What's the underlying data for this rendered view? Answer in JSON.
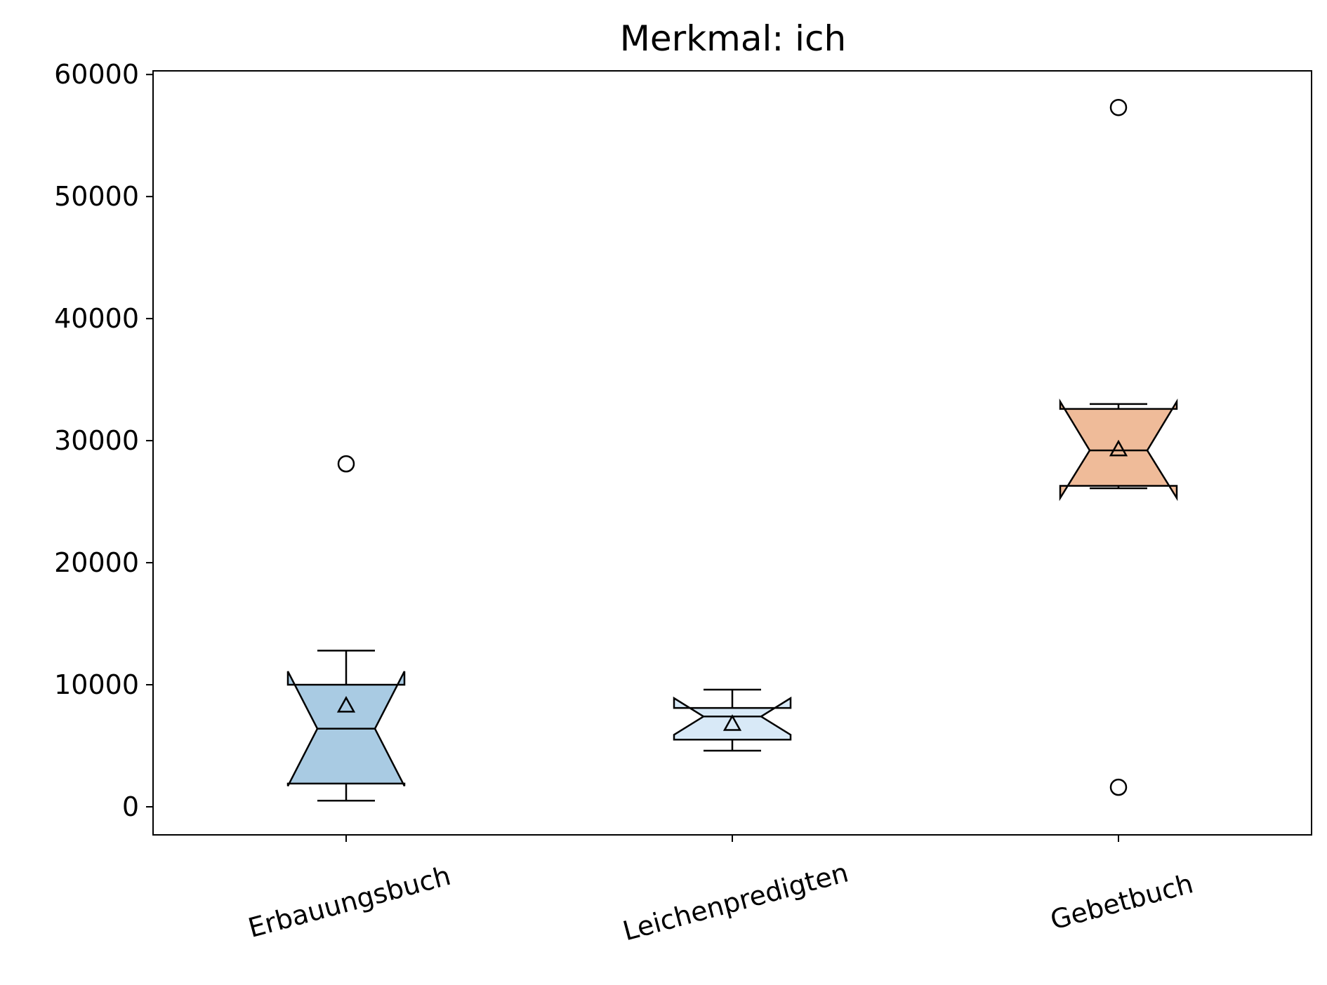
{
  "chart_data": {
    "type": "box",
    "title": "Merkmal: ich",
    "xlabel": "",
    "ylabel": "",
    "ylim": [
      -2300,
      60300
    ],
    "yticks": [
      0,
      10000,
      20000,
      30000,
      40000,
      50000,
      60000
    ],
    "ytick_labels": [
      "0",
      "10000",
      "20000",
      "30000",
      "40000",
      "50000",
      "60000"
    ],
    "grid": false,
    "notched": true,
    "show_means": true,
    "categories": [
      "Erbauungsbuch",
      "Leichenpredigten",
      "Gebetbuch"
    ],
    "boxes": [
      {
        "label": "Erbauungsbuch",
        "color": "#a9cbe3",
        "whisker_low": 500,
        "q1": 1900,
        "median": 6400,
        "q3": 10000,
        "whisker_high": 12800,
        "notch_low": 1700,
        "notch_high": 11100,
        "mean": 8300,
        "outliers": [
          28100
        ]
      },
      {
        "label": "Leichenpredigten",
        "color": "#d8e9f7",
        "whisker_low": 4600,
        "q1": 5500,
        "median": 7400,
        "q3": 8100,
        "whisker_high": 9600,
        "notch_low": 5900,
        "notch_high": 8900,
        "mean": 6800,
        "outliers": []
      },
      {
        "label": "Gebetbuch",
        "color": "#efbb99",
        "whisker_low": 26100,
        "q1": 26300,
        "median": 29200,
        "q3": 32600,
        "whisker_high": 33000,
        "notch_low": 25300,
        "notch_high": 33200,
        "mean": 29300,
        "outliers": [
          57300,
          1600
        ]
      }
    ]
  }
}
